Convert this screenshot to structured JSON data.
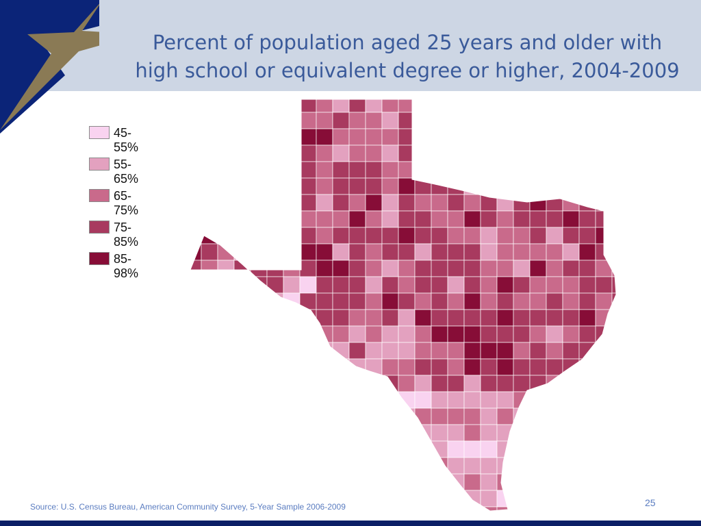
{
  "title": {
    "line1": "Percent of population aged 25 years and older with",
    "line2": "high school or equivalent degree or higher, 2004-2009"
  },
  "legend": [
    {
      "label": "45-55%",
      "color": "#f9d3f0"
    },
    {
      "label": "55-65%",
      "color": "#e3a1bf"
    },
    {
      "label": "65-75%",
      "color": "#c96a8b"
    },
    {
      "label": "75-85%",
      "color": "#a83a5f"
    },
    {
      "label": "85-98%",
      "color": "#870d37"
    }
  ],
  "colors": {
    "header_band": "#cdd6e4",
    "navy": "#0b2478",
    "star": "#8a7a55",
    "title_text": "#3a5a9a"
  },
  "source": "Source: U.S. Census Bureau, American Community Survey, 5-Year Sample 2006-2009",
  "page_number": "25"
}
